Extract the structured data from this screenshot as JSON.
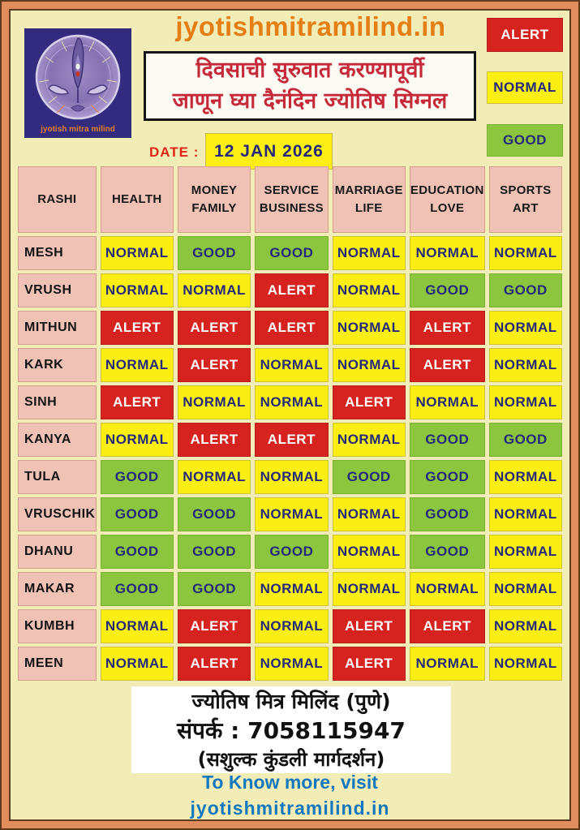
{
  "site_title": "jyotishmitramilind.in",
  "logo_caption": "jyotish mitra milind",
  "banner": {
    "line1": "दिवसाची सुरुवात करण्यापूर्वी",
    "line2": "जाणून घ्या दैनंदिन ज्योतिष सिग्नल"
  },
  "legend": {
    "alert": "ALERT",
    "normal": "NORMAL",
    "good": "GOOD"
  },
  "date": {
    "label": "DATE :",
    "value": "12 JAN 2026"
  },
  "colors": {
    "alert_bg": "#d6231f",
    "alert_text": "#ffffff",
    "normal_bg": "#fbee13",
    "normal_text": "#232a7a",
    "good_bg": "#8cc63f",
    "good_text": "#232a7a",
    "header_cell_bg": "#f0c2b5",
    "title_orange": "#e57e14",
    "banner_red": "#c5293a",
    "link_blue": "#1478bf",
    "frame_salmon": "#e18d5d",
    "page_bg": "#f2edb7"
  },
  "table": {
    "columns": [
      {
        "line1": "RASHI",
        "line2": ""
      },
      {
        "line1": "HEALTH",
        "line2": ""
      },
      {
        "line1": "MONEY",
        "line2": "FAMILY"
      },
      {
        "line1": "SERVICE",
        "line2": "BUSINESS"
      },
      {
        "line1": "MARRIAGE",
        "line2": "LIFE"
      },
      {
        "line1": "EDUCATION",
        "line2": "LOVE"
      },
      {
        "line1": "SPORTS",
        "line2": "ART"
      }
    ],
    "rows": [
      {
        "rashi": "MESH",
        "values": [
          "NORMAL",
          "GOOD",
          "GOOD",
          "NORMAL",
          "NORMAL",
          "NORMAL"
        ]
      },
      {
        "rashi": "VRUSH",
        "values": [
          "NORMAL",
          "NORMAL",
          "ALERT",
          "NORMAL",
          "GOOD",
          "GOOD"
        ]
      },
      {
        "rashi": "MITHUN",
        "values": [
          "ALERT",
          "ALERT",
          "ALERT",
          "NORMAL",
          "ALERT",
          "NORMAL"
        ]
      },
      {
        "rashi": "KARK",
        "values": [
          "NORMAL",
          "ALERT",
          "NORMAL",
          "NORMAL",
          "ALERT",
          "NORMAL"
        ]
      },
      {
        "rashi": "SINH",
        "values": [
          "ALERT",
          "NORMAL",
          "NORMAL",
          "ALERT",
          "NORMAL",
          "NORMAL"
        ]
      },
      {
        "rashi": "KANYA",
        "values": [
          "NORMAL",
          "ALERT",
          "ALERT",
          "NORMAL",
          "GOOD",
          "GOOD"
        ]
      },
      {
        "rashi": "TULA",
        "values": [
          "GOOD",
          "NORMAL",
          "NORMAL",
          "GOOD",
          "GOOD",
          "NORMAL"
        ]
      },
      {
        "rashi": "VRUSCHIK",
        "values": [
          "GOOD",
          "GOOD",
          "NORMAL",
          "NORMAL",
          "GOOD",
          "NORMAL"
        ]
      },
      {
        "rashi": "DHANU",
        "values": [
          "GOOD",
          "GOOD",
          "GOOD",
          "NORMAL",
          "GOOD",
          "NORMAL"
        ]
      },
      {
        "rashi": "MAKAR",
        "values": [
          "GOOD",
          "GOOD",
          "NORMAL",
          "NORMAL",
          "NORMAL",
          "NORMAL"
        ]
      },
      {
        "rashi": "KUMBH",
        "values": [
          "NORMAL",
          "ALERT",
          "NORMAL",
          "ALERT",
          "ALERT",
          "NORMAL"
        ]
      },
      {
        "rashi": "MEEN",
        "values": [
          "NORMAL",
          "ALERT",
          "NORMAL",
          "ALERT",
          "NORMAL",
          "NORMAL"
        ]
      }
    ]
  },
  "footer": {
    "line1": "ज्योतिष मित्र मिलिंद (पुणे)",
    "line2": "संपर्क : 7058115947",
    "line3": "(सशुल्क कुंडली मार्गदर्शन)",
    "know_more": "To Know more, visit",
    "website": "jyotishmitramilind.in"
  }
}
